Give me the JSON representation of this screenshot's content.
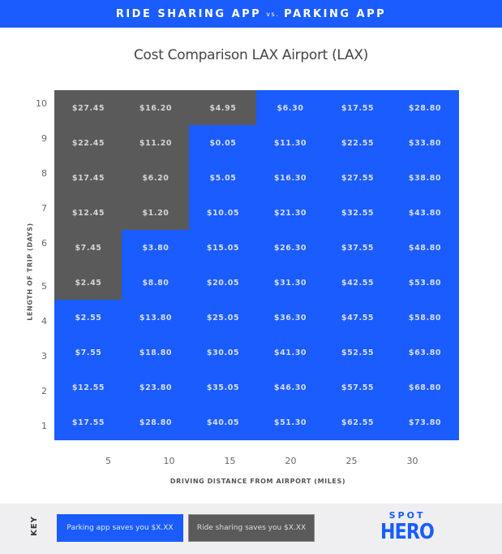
{
  "banner": {
    "left": "RIDE SHARING APP",
    "vs": "vs.",
    "right": "PARKING APP"
  },
  "colors": {
    "parking_saves": "#1a5cff",
    "ride_saves": "#5a5a5a"
  },
  "chart_data": {
    "type": "heatmap",
    "title": "Cost Comparison LAX Airport (LAX)",
    "xlabel": "DRIVING DISTANCE FROM AIRPORT (MILES)",
    "ylabel": "LENGTH OF TRIP (DAYS)",
    "x": [
      5,
      10,
      15,
      20,
      25,
      30
    ],
    "y": [
      10,
      9,
      8,
      7,
      6,
      5,
      4,
      3,
      2,
      1
    ],
    "values": [
      [
        "$27.45",
        "$16.20",
        "$4.95",
        "$6.30",
        "$17.55",
        "$28.80"
      ],
      [
        "$22.45",
        "$11.20",
        "$0.05",
        "$11.30",
        "$22.55",
        "$33.80"
      ],
      [
        "$17.45",
        "$6.20",
        "$5.05",
        "$16.30",
        "$27.55",
        "$38.80"
      ],
      [
        "$12.45",
        "$1.20",
        "$10.05",
        "$21.30",
        "$32.55",
        "$43.80"
      ],
      [
        "$7.45",
        "$3.80",
        "$15.05",
        "$26.30",
        "$37.55",
        "$48.80"
      ],
      [
        "$2.45",
        "$8.80",
        "$20.05",
        "$31.30",
        "$42.55",
        "$53.80"
      ],
      [
        "$2.55",
        "$13.80",
        "$25.05",
        "$36.30",
        "$47.55",
        "$58.80"
      ],
      [
        "$7.55",
        "$18.80",
        "$30.05",
        "$41.30",
        "$52.55",
        "$63.80"
      ],
      [
        "$12.55",
        "$23.80",
        "$35.05",
        "$46.30",
        "$57.55",
        "$68.80"
      ],
      [
        "$17.55",
        "$28.80",
        "$40.05",
        "$51.30",
        "$62.55",
        "$73.80"
      ]
    ],
    "winner": [
      [
        "ride",
        "ride",
        "ride",
        "parking",
        "parking",
        "parking"
      ],
      [
        "ride",
        "ride",
        "parking",
        "parking",
        "parking",
        "parking"
      ],
      [
        "ride",
        "ride",
        "parking",
        "parking",
        "parking",
        "parking"
      ],
      [
        "ride",
        "ride",
        "parking",
        "parking",
        "parking",
        "parking"
      ],
      [
        "ride",
        "parking",
        "parking",
        "parking",
        "parking",
        "parking"
      ],
      [
        "ride",
        "parking",
        "parking",
        "parking",
        "parking",
        "parking"
      ],
      [
        "parking",
        "parking",
        "parking",
        "parking",
        "parking",
        "parking"
      ],
      [
        "parking",
        "parking",
        "parking",
        "parking",
        "parking",
        "parking"
      ],
      [
        "parking",
        "parking",
        "parking",
        "parking",
        "parking",
        "parking"
      ],
      [
        "parking",
        "parking",
        "parking",
        "parking",
        "parking",
        "parking"
      ]
    ],
    "legend": [
      {
        "label": "Parking app saves you $X.XX",
        "key": "parking"
      },
      {
        "label": "Ride sharing saves you $X.XX",
        "key": "ride"
      }
    ],
    "legend_position": "bottom-left"
  },
  "footer": {
    "key_label": "KEY",
    "logo_top": "SPOT",
    "logo_bottom": "HERO"
  }
}
